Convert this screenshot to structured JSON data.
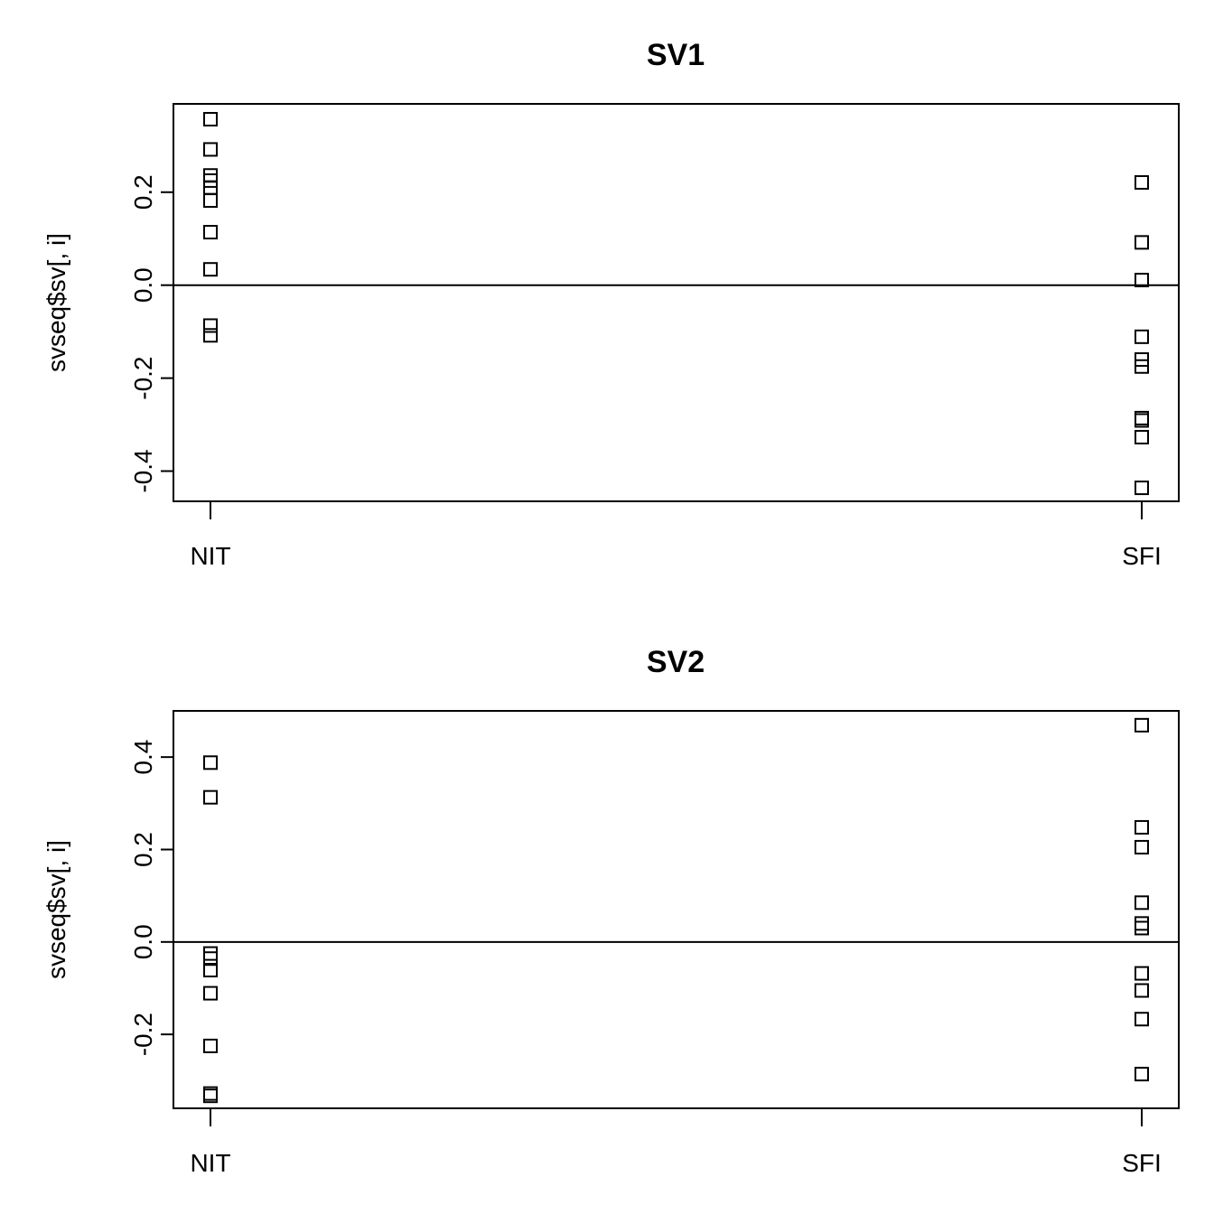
{
  "chart_data": [
    {
      "type": "scatter",
      "title": "SV1",
      "ylabel": "svseq$sv[, i]",
      "xlabel": "",
      "categories": [
        "NIT",
        "SFI"
      ],
      "ylim": [
        -0.465,
        0.39
      ],
      "yticks": [
        -0.4,
        -0.2,
        0.0,
        0.2
      ],
      "ytick_labels": [
        "-0.4",
        "-0.2",
        "0.0",
        "0.2"
      ],
      "hline": 0,
      "grid": false,
      "series": [
        {
          "category": "NIT",
          "values": [
            0.357,
            0.292,
            0.236,
            0.225,
            0.21,
            0.182,
            0.114,
            0.034,
            -0.087,
            -0.108
          ]
        },
        {
          "category": "SFI",
          "values": [
            0.221,
            0.092,
            0.011,
            -0.111,
            -0.16,
            -0.175,
            -0.286,
            -0.291,
            -0.327,
            -0.436
          ]
        }
      ]
    },
    {
      "type": "scatter",
      "title": "SV2",
      "ylabel": "svseq$sv[, i]",
      "xlabel": "",
      "categories": [
        "NIT",
        "SFI"
      ],
      "ylim": [
        -0.36,
        0.5
      ],
      "yticks": [
        -0.2,
        0.0,
        0.2,
        0.4
      ],
      "ytick_labels": [
        "-0.2",
        "0.0",
        "0.2",
        "0.4"
      ],
      "hline": 0,
      "grid": false,
      "series": [
        {
          "category": "NIT",
          "values": [
            0.388,
            0.313,
            -0.025,
            -0.036,
            -0.061,
            -0.111,
            -0.225,
            -0.328,
            -0.333
          ]
        },
        {
          "category": "SFI",
          "values": [
            0.469,
            0.248,
            0.205,
            0.085,
            0.04,
            0.03,
            -0.068,
            -0.105,
            -0.167,
            -0.286
          ]
        }
      ]
    }
  ]
}
